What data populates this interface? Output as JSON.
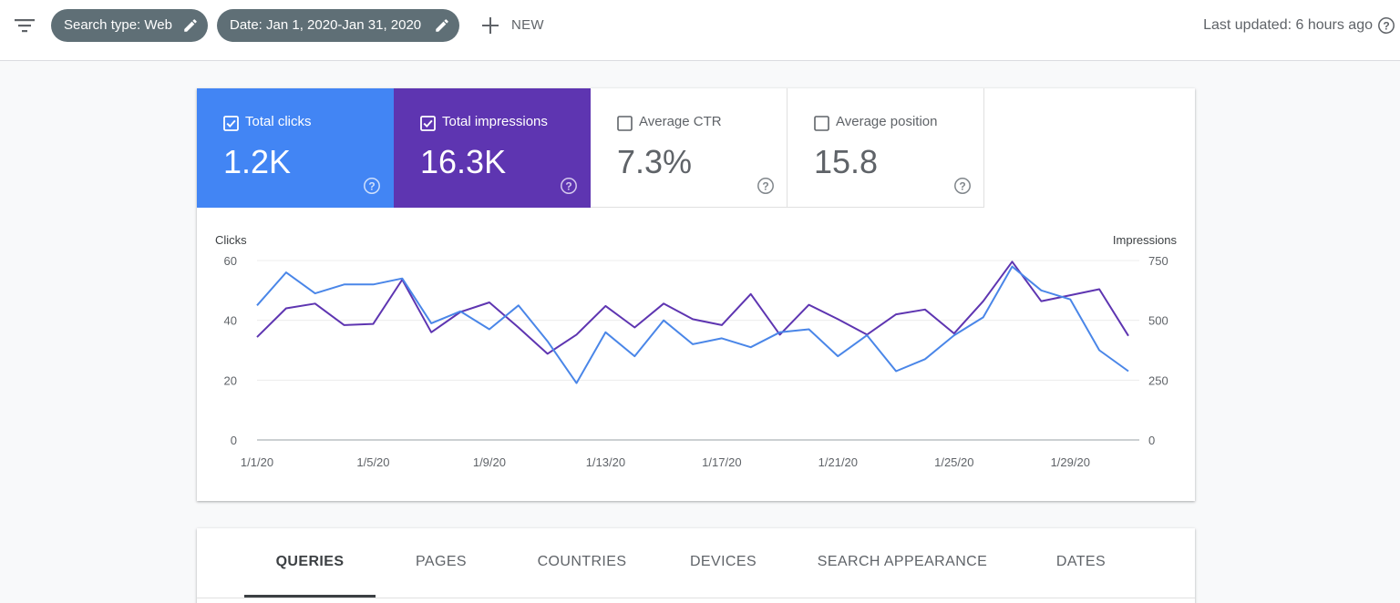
{
  "header": {
    "search_type_chip": "Search type: Web",
    "date_chip": "Date: Jan 1, 2020-Jan 31, 2020",
    "new_label": "NEW",
    "last_updated": "Last updated: 6 hours ago"
  },
  "metrics": [
    {
      "label": "Total clicks",
      "value": "1.2K",
      "checked": true,
      "color": "#4285f4"
    },
    {
      "label": "Total impressions",
      "value": "16.3K",
      "checked": true,
      "color": "#5e35b1"
    },
    {
      "label": "Average CTR",
      "value": "7.3%",
      "checked": false
    },
    {
      "label": "Average position",
      "value": "15.8",
      "checked": false
    }
  ],
  "chart_data": {
    "type": "line",
    "y_left_label": "Clicks",
    "y_right_label": "Impressions",
    "y_left_ticks": [
      "60",
      "40",
      "20",
      "0"
    ],
    "y_right_ticks": [
      "750",
      "500",
      "250",
      "0"
    ],
    "y_left_range": [
      0,
      60
    ],
    "y_right_range": [
      0,
      750
    ],
    "x_tick_labels": [
      "1/1/20",
      "1/5/20",
      "1/9/20",
      "1/13/20",
      "1/17/20",
      "1/21/20",
      "1/25/20",
      "1/29/20"
    ],
    "x": [
      "1/1/20",
      "1/2/20",
      "1/3/20",
      "1/4/20",
      "1/5/20",
      "1/6/20",
      "1/7/20",
      "1/8/20",
      "1/9/20",
      "1/10/20",
      "1/11/20",
      "1/12/20",
      "1/13/20",
      "1/14/20",
      "1/15/20",
      "1/16/20",
      "1/17/20",
      "1/18/20",
      "1/19/20",
      "1/20/20",
      "1/21/20",
      "1/22/20",
      "1/23/20",
      "1/24/20",
      "1/25/20",
      "1/26/20",
      "1/27/20",
      "1/28/20",
      "1/29/20",
      "1/30/20",
      "1/31/20"
    ],
    "grid": true,
    "series": [
      {
        "name": "Total clicks",
        "axis": "left",
        "color": "#4a86e8",
        "values": [
          45,
          56,
          49,
          52,
          52,
          54,
          39,
          43,
          37,
          45,
          33,
          19,
          36,
          28,
          40,
          32,
          34,
          31,
          36,
          37,
          28,
          35,
          23,
          27,
          35,
          41,
          58,
          50,
          47,
          30,
          23
        ]
      },
      {
        "name": "Total impressions",
        "axis": "right",
        "color": "#5e35b1",
        "values": [
          430,
          550,
          570,
          480,
          485,
          670,
          450,
          535,
          575,
          470,
          360,
          440,
          560,
          470,
          570,
          505,
          480,
          610,
          440,
          565,
          505,
          440,
          525,
          545,
          445,
          580,
          745,
          580,
          605,
          630,
          435
        ]
      }
    ]
  },
  "tabs": [
    "QUERIES",
    "PAGES",
    "COUNTRIES",
    "DEVICES",
    "SEARCH APPEARANCE",
    "DATES"
  ]
}
